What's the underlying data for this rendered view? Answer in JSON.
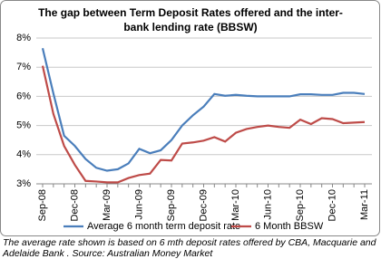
{
  "chart_data": {
    "type": "line",
    "title": "The gap between Term Deposit Rates offered and the inter-bank lending rate (BBSW)",
    "caption": "The average rate shown is based on 6 mth deposit rates offered by CBA, Macquarie and Adelaide Bank . Source: Australian Money Market",
    "categories": [
      "Sep-08",
      null,
      null,
      "Dec-08",
      null,
      null,
      "Mar-09",
      null,
      null,
      "Jun-09",
      null,
      null,
      "Sep-09",
      null,
      null,
      "Dec-09",
      null,
      null,
      "Mar-10",
      null,
      null,
      "Jun-10",
      null,
      null,
      "Sep-10",
      null,
      null,
      "Dec-10",
      null,
      null,
      "Mar-11"
    ],
    "series": [
      {
        "name": "Average 6 month term deposit rate",
        "color": "#4a7ebb",
        "values": [
          7.65,
          6.1,
          4.65,
          4.3,
          3.85,
          3.55,
          3.45,
          3.5,
          3.7,
          4.2,
          4.05,
          4.15,
          4.5,
          5.0,
          5.35,
          5.65,
          6.08,
          6.02,
          6.05,
          6.02,
          6.0,
          6.0,
          6.0,
          6.0,
          6.07,
          6.07,
          6.05,
          6.05,
          6.12,
          6.12,
          6.08
        ]
      },
      {
        "name": "6 Month BBSW",
        "color": "#be4b48",
        "values": [
          7.05,
          5.4,
          4.3,
          3.65,
          3.1,
          3.08,
          3.05,
          3.05,
          3.2,
          3.3,
          3.35,
          3.82,
          3.8,
          4.38,
          4.42,
          4.48,
          4.6,
          4.45,
          4.75,
          4.88,
          4.95,
          5.0,
          4.95,
          4.92,
          5.2,
          5.05,
          5.25,
          5.22,
          5.08,
          5.1,
          5.12
        ]
      }
    ],
    "ylim": [
      3,
      8
    ],
    "yticks": [
      {
        "value": 3,
        "label": "3%"
      },
      {
        "value": 4,
        "label": "4%"
      },
      {
        "value": 5,
        "label": "5%"
      },
      {
        "value": 6,
        "label": "6%"
      },
      {
        "value": 7,
        "label": "7%"
      },
      {
        "value": 8,
        "label": "8%"
      }
    ],
    "grid": true,
    "legend": "bottom"
  }
}
